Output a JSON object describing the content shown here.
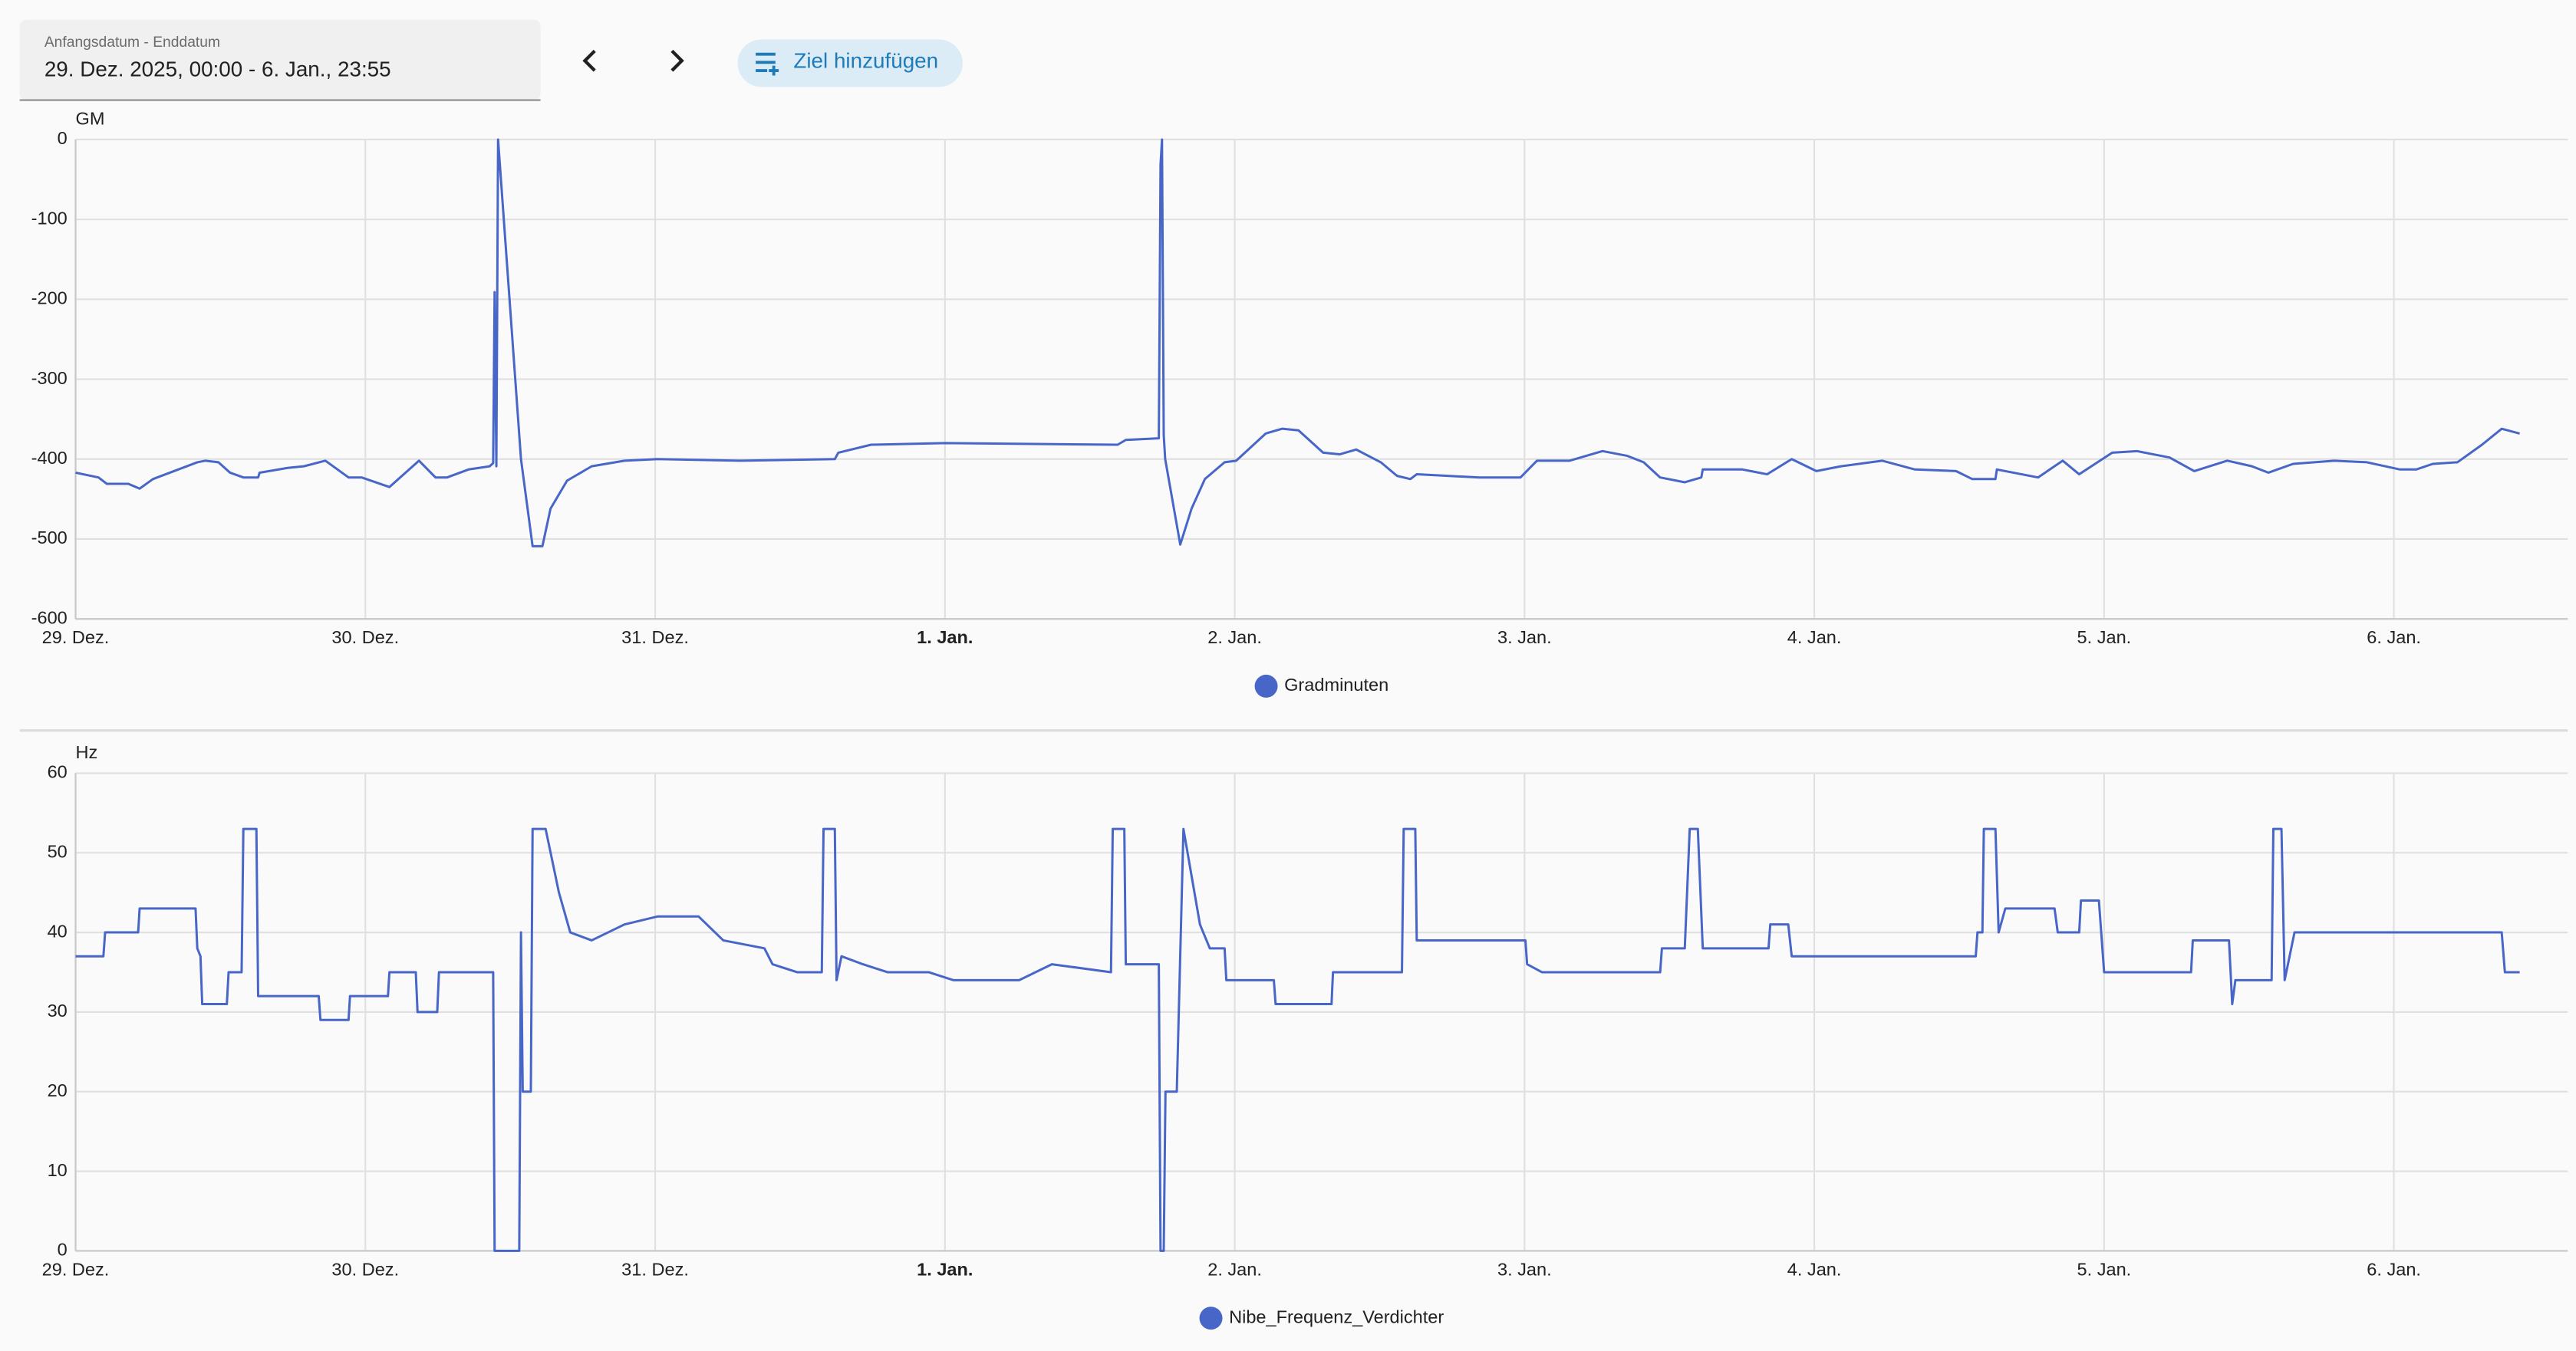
{
  "header": {
    "date_range_label": "Anfangsdatum - Enddatum",
    "date_range": "29. Dez. 2025, 00:00 - 6. Jan., 23:55",
    "add_target_button": "Ziel hinzufügen"
  },
  "chart_data": [
    {
      "type": "line",
      "y_label": "GM",
      "xlim": [
        0,
        8.6
      ],
      "ylim": [
        -600,
        0
      ],
      "grid": true,
      "xticks": [
        {
          "value": 0,
          "label": "29. Dez."
        },
        {
          "value": 1,
          "label": "30. Dez."
        },
        {
          "value": 2,
          "label": "31. Dez."
        },
        {
          "value": 3,
          "label": "1. Jan.",
          "bold": true
        },
        {
          "value": 4,
          "label": "2. Jan."
        },
        {
          "value": 5,
          "label": "3. Jan."
        },
        {
          "value": 6,
          "label": "4. Jan."
        },
        {
          "value": 7,
          "label": "5. Jan."
        },
        {
          "value": 8,
          "label": "6. Jan."
        }
      ],
      "yticks": [
        0,
        -100,
        -200,
        -300,
        -400,
        -500,
        -600
      ],
      "x": [
        0,
        0.079,
        0.108,
        0.182,
        0.221,
        0.267,
        0.42,
        0.448,
        0.493,
        0.533,
        0.579,
        0.63,
        0.635,
        0.732,
        0.788,
        0.862,
        0.942,
        0.987,
        1.083,
        1.185,
        1.242,
        1.282,
        1.356,
        1.429,
        1.441,
        1.446,
        1.452,
        1.458,
        1.537,
        1.577,
        1.611,
        1.639,
        1.696,
        1.781,
        1.894,
        2.008,
        2.292,
        2.62,
        2.632,
        2.745,
        3.001,
        3.596,
        3.624,
        3.738,
        3.744,
        3.749,
        3.755,
        3.76,
        3.812,
        3.851,
        3.897,
        3.965,
        4.005,
        4.107,
        4.163,
        4.22,
        4.305,
        4.362,
        4.419,
        4.504,
        4.56,
        4.606,
        4.628,
        4.844,
        4.986,
        5.043,
        5.156,
        5.269,
        5.355,
        5.411,
        5.468,
        5.553,
        5.61,
        5.615,
        5.752,
        5.837,
        5.922,
        6.007,
        6.092,
        6.234,
        6.347,
        6.489,
        6.545,
        6.625,
        6.63,
        6.772,
        6.857,
        6.914,
        7.028,
        7.113,
        7.226,
        7.311,
        7.425,
        7.51,
        7.567,
        7.652,
        7.794,
        7.907,
        8.021,
        8.077,
        8.134,
        8.219,
        8.304,
        8.372,
        8.434
      ],
      "series": [
        {
          "name": "Gradminuten",
          "color": "#4766c8",
          "values": [
            -417,
            -423,
            -431,
            -431,
            -437,
            -425,
            -404,
            -402,
            -404,
            -417,
            -423,
            -423,
            -417,
            -411,
            -409,
            -402,
            -423,
            -423,
            -435,
            -402,
            -423,
            -423,
            -413,
            -409,
            -405,
            -191,
            -409,
            0,
            -400,
            -509,
            -509,
            -462,
            -427,
            -409,
            -402,
            -400,
            -402,
            -400,
            -392,
            -382,
            -380,
            -382,
            -376,
            -374,
            -31,
            0,
            -370,
            -400,
            -507,
            -462,
            -425,
            -404,
            -402,
            -368,
            -362,
            -364,
            -392,
            -394,
            -388,
            -404,
            -421,
            -425,
            -419,
            -423,
            -423,
            -402,
            -402,
            -390,
            -396,
            -404,
            -423,
            -429,
            -423,
            -413,
            -413,
            -419,
            -400,
            -415,
            -409,
            -402,
            -413,
            -415,
            -425,
            -425,
            -413,
            -423,
            -402,
            -419,
            -392,
            -390,
            -398,
            -415,
            -402,
            -409,
            -417,
            -406,
            -402,
            -404,
            -413,
            -413,
            -406,
            -404,
            -382,
            -362,
            -368
          ]
        }
      ]
    },
    {
      "type": "line",
      "y_label": "Hz",
      "xlim": [
        0,
        8.6
      ],
      "ylim": [
        0,
        60
      ],
      "grid": true,
      "xticks": [
        {
          "value": 0,
          "label": "29. Dez."
        },
        {
          "value": 1,
          "label": "30. Dez."
        },
        {
          "value": 2,
          "label": "31. Dez."
        },
        {
          "value": 3,
          "label": "1. Jan.",
          "bold": true
        },
        {
          "value": 4,
          "label": "2. Jan."
        },
        {
          "value": 5,
          "label": "3. Jan."
        },
        {
          "value": 6,
          "label": "4. Jan."
        },
        {
          "value": 7,
          "label": "5. Jan."
        },
        {
          "value": 8,
          "label": "6. Jan."
        }
      ],
      "yticks": [
        60,
        50,
        40,
        30,
        20,
        10,
        0
      ],
      "x": [
        0,
        0.096,
        0.102,
        0.216,
        0.221,
        0.414,
        0.42,
        0.431,
        0.437,
        0.522,
        0.528,
        0.573,
        0.579,
        0.624,
        0.63,
        0.839,
        0.845,
        0.942,
        0.947,
        1.078,
        1.083,
        1.174,
        1.18,
        1.248,
        1.254,
        1.441,
        1.446,
        1.531,
        1.537,
        1.543,
        1.571,
        1.577,
        1.622,
        1.668,
        1.707,
        1.781,
        1.894,
        2.008,
        2.15,
        2.235,
        2.377,
        2.405,
        2.49,
        2.575,
        2.581,
        2.62,
        2.626,
        2.643,
        2.717,
        2.802,
        2.944,
        3.029,
        3.256,
        3.369,
        3.573,
        3.579,
        3.619,
        3.624,
        3.738,
        3.744,
        3.755,
        3.761,
        3.8,
        3.823,
        3.88,
        3.914,
        3.965,
        3.971,
        4.135,
        4.141,
        4.334,
        4.339,
        4.577,
        4.583,
        4.623,
        4.628,
        5.003,
        5.009,
        5.06,
        5.468,
        5.474,
        5.553,
        5.57,
        5.598,
        5.615,
        5.842,
        5.848,
        5.91,
        5.922,
        6.557,
        6.563,
        6.58,
        6.585,
        6.625,
        6.636,
        6.659,
        6.829,
        6.84,
        6.914,
        6.92,
        6.982,
        7.0,
        7.3,
        7.306,
        7.431,
        7.442,
        7.453,
        7.578,
        7.584,
        7.612,
        7.623,
        7.657,
        8.372,
        8.383,
        8.434
      ],
      "series": [
        {
          "name": "Nibe_Frequenz_Verdichter",
          "color": "#4766c8",
          "values": [
            37,
            37,
            40,
            40,
            43,
            43,
            38,
            37,
            31,
            31,
            35,
            35,
            53,
            53,
            32,
            32,
            29,
            29,
            32,
            32,
            35,
            35,
            30,
            30,
            35,
            35,
            0,
            0,
            40,
            20,
            20,
            53,
            53,
            45,
            40,
            39,
            41,
            42,
            42,
            39,
            38,
            36,
            35,
            35,
            53,
            53,
            34,
            37,
            36,
            35,
            35,
            34,
            34,
            36,
            35,
            53,
            53,
            36,
            36,
            0,
            0,
            20,
            20,
            53,
            41,
            38,
            38,
            34,
            34,
            31,
            31,
            35,
            35,
            53,
            53,
            39,
            39,
            36,
            35,
            35,
            38,
            38,
            53,
            53,
            38,
            38,
            41,
            41,
            37,
            37,
            40,
            40,
            53,
            53,
            40,
            43,
            43,
            40,
            40,
            44,
            44,
            35,
            35,
            39,
            39,
            31,
            34,
            34,
            53,
            53,
            34,
            40,
            40,
            35,
            35
          ]
        }
      ]
    }
  ]
}
